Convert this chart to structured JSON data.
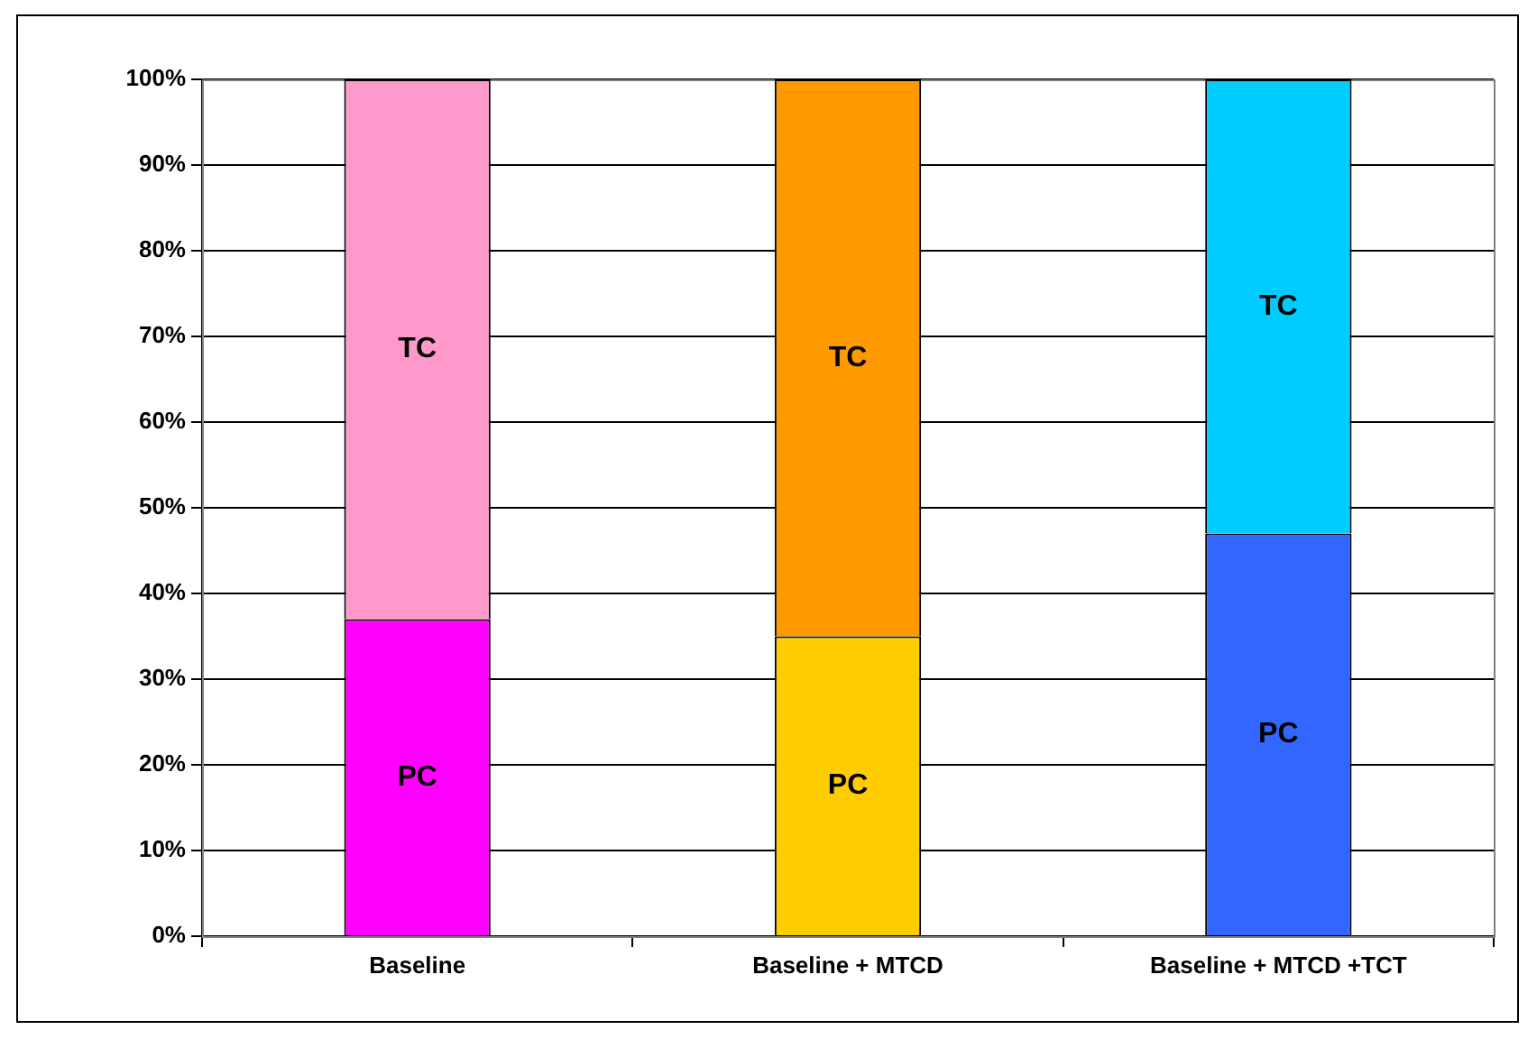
{
  "chart_data": {
    "type": "bar",
    "stacked": true,
    "categories": [
      "Baseline",
      "Baseline + MTCD",
      "Baseline + MTCD +TCT"
    ],
    "series": [
      {
        "name": "PC",
        "colors": [
          "#ff00ff",
          "#ffcc00",
          "#3366ff"
        ],
        "values": [
          37,
          35,
          47
        ]
      },
      {
        "name": "TC",
        "colors": [
          "#ff99cc",
          "#ff9900",
          "#00ccff"
        ],
        "values": [
          63,
          65,
          53
        ]
      }
    ],
    "ylim": [
      0,
      100
    ],
    "yticks": [
      {
        "value": 0,
        "label": "0%"
      },
      {
        "value": 10,
        "label": "10%"
      },
      {
        "value": 20,
        "label": "20%"
      },
      {
        "value": 30,
        "label": "30%"
      },
      {
        "value": 40,
        "label": "40%"
      },
      {
        "value": 50,
        "label": "50%"
      },
      {
        "value": 60,
        "label": "60%"
      },
      {
        "value": 70,
        "label": "70%"
      },
      {
        "value": 80,
        "label": "80%"
      },
      {
        "value": 90,
        "label": "90%"
      },
      {
        "value": 100,
        "label": "100%"
      }
    ],
    "grid": "y",
    "legend": false
  }
}
